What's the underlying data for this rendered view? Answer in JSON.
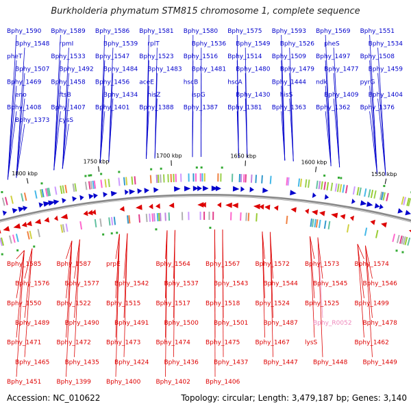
{
  "title": "Burkholderia phymatum STM815 chromosome 1, complete sequence",
  "footer": {
    "accession": "Accession: NC_010622",
    "summary": "Topology: circular; Length: 3,479,187 bp; Genes: 3,140"
  },
  "colors": {
    "forward": "#0000cc",
    "reverse": "#dd0000",
    "rna": "#ee88bb",
    "backbone": "#888888"
  },
  "kbp_ticks": [
    "1800 kbp",
    "1750 kbp",
    "1700 kbp",
    "1650 kbp",
    "1600 kbp",
    "1550 kbp"
  ],
  "forward_genes": [
    "Bphy_1590",
    "Bphy_1589",
    "Bphy_1586",
    "Bphy_1581",
    "Bphy_1580",
    "Bphy_1575",
    "Bphy_1593",
    "Bphy_1569",
    "Bphy_1551",
    "Bphy_1548",
    "rpmI",
    "Bphy_1539",
    "rplT",
    "Bphy_1536",
    "Bphy_1549",
    "Bphy_1526",
    "pheS",
    "Bphy_1534",
    "pheT",
    "Bphy_1533",
    "Bphy_1547",
    "Bphy_1523",
    "Bphy_1516",
    "Bphy_1514",
    "Bphy_1509",
    "Bphy_1497",
    "Bphy_1508",
    "Bphy_1507",
    "Bphy_1492",
    "Bphy_1484",
    "Bphy_1483",
    "Bphy_1481",
    "Bphy_1480",
    "Bphy_1479",
    "Bphy_1477",
    "Bphy_1459",
    "Bphy_1469",
    "Bphy_1458",
    "Bphy_1456",
    "aceE",
    "hscB",
    "hscA",
    "Bphy_1444",
    "ndk",
    "pyrG",
    "eno",
    "ftsB",
    "Bphy_1434",
    "hisZ",
    "ispG",
    "Bphy_1430",
    "hisS",
    "Bphy_1409",
    "Bphy_1404",
    "Bphy_1408",
    "Bphy_1407",
    "Bphy_1401",
    "Bphy_1388",
    "Bphy_1387",
    "Bphy_1381",
    "Bphy_1363",
    "Bphy_1362",
    "Bphy_1376",
    "Bphy_1373",
    "cysS"
  ],
  "reverse_genes": [
    "Bphy_1585",
    "Bphy_1587",
    "prpE",
    "Bphy_1564",
    "Bphy_1567",
    "Bphy_1572",
    "Bphy_1573",
    "Bphy_1574",
    "Bphy_1576",
    "Bphy_1577",
    "Bphy_1542",
    "Bphy_1537",
    "Bphy_1543",
    "Bphy_1544",
    "Bphy_1545",
    "Bphy_1546",
    "Bphy_1550",
    "Bphy_1522",
    "Bphy_1515",
    "Bphy_1517",
    "Bphy_1518",
    "Bphy_1524",
    "Bphy_1525",
    "Bphy_1499",
    "Bphy_1489",
    "Bphy_1490",
    "Bphy_1491",
    "Bphy_1500",
    "Bphy_1501",
    "Bphy_1487",
    "Bphy_R0052",
    "Bphy_1478",
    "Bphy_1471",
    "Bphy_1472",
    "Bphy_1473",
    "Bphy_1474",
    "Bphy_1475",
    "Bphy_1467",
    "lysS",
    "Bphy_1462",
    "Bphy_1465",
    "Bphy_1435",
    "Bphy_1424",
    "Bphy_1436",
    "Bphy_1437",
    "Bphy_1447",
    "Bphy_1448",
    "Bphy_1449",
    "Bphy_1451",
    "Bphy_1399",
    "Bphy_1400",
    "Bphy_1402",
    "Bphy_1406"
  ]
}
